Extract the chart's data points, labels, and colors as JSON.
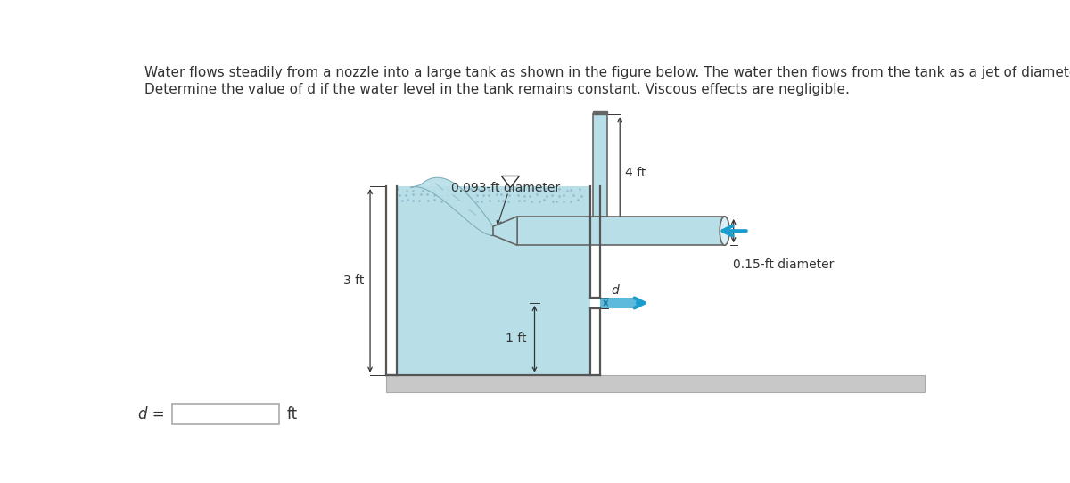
{
  "bg_color": "#ffffff",
  "text_color": "#333333",
  "water_color": "#b8dfe8",
  "water_surface_color": "#8ecad8",
  "tank_wall_color": "#555555",
  "pipe_fill": "#b8dfe8",
  "pipe_edge": "#666666",
  "ground_color": "#c8c8c8",
  "ground_edge": "#aaaaaa",
  "arrow_blue": "#1a9dce",
  "ripple_color": "#8ab8c8",
  "stream_edge": "#7aaab8",
  "title_line1": "Water flows steadily from a nozzle into a large tank as shown in the figure below. The water then flows from the tank as a jet of diameter d.",
  "title_line2": "Determine the value of d if the water level in the tank remains constant. Viscous effects are negligible.",
  "label_3ft": "3 ft",
  "label_1ft": "1 ft",
  "label_4ft": "4 ft",
  "label_093": "0.093-ft diameter",
  "label_015": "0.15-ft diameter",
  "label_d": "d",
  "label_d_eq": "d =",
  "label_ft": "ft",
  "title_fs": 11,
  "label_fs": 10
}
